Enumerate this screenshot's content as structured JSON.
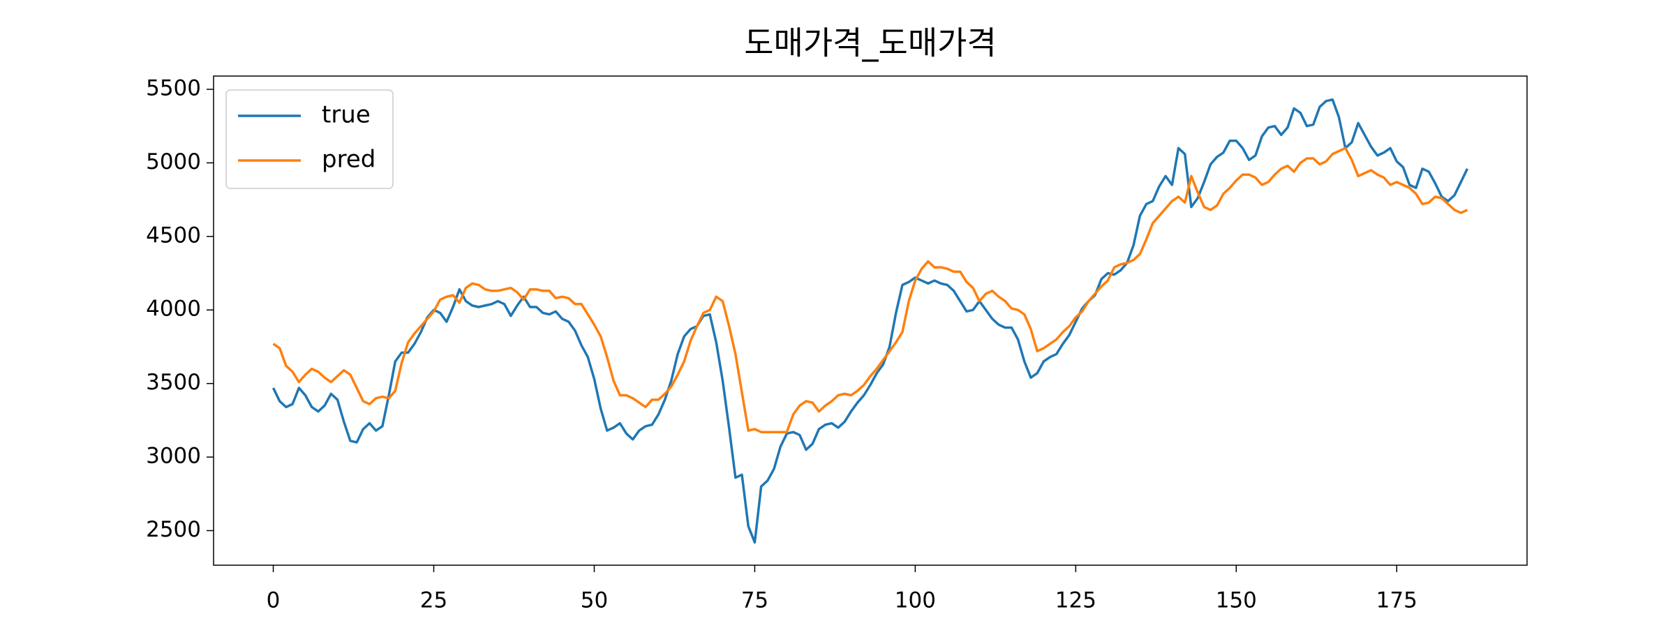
{
  "chart_data": {
    "type": "line",
    "title": "도매가격_도매가격",
    "x": [
      0,
      1,
      2,
      3,
      4,
      5,
      6,
      7,
      8,
      9,
      10,
      11,
      12,
      13,
      14,
      15,
      16,
      17,
      18,
      19,
      20,
      21,
      22,
      23,
      24,
      25,
      26,
      27,
      28,
      29,
      30,
      31,
      32,
      33,
      34,
      35,
      36,
      37,
      38,
      39,
      40,
      41,
      42,
      43,
      44,
      45,
      46,
      47,
      48,
      49,
      50,
      51,
      52,
      53,
      54,
      55,
      56,
      57,
      58,
      59,
      60,
      61,
      62,
      63,
      64,
      65,
      66,
      67,
      68,
      69,
      70,
      71,
      72,
      73,
      74,
      75,
      76,
      77,
      78,
      79,
      80,
      81,
      82,
      83,
      84,
      85,
      86,
      87,
      88,
      89,
      90,
      91,
      92,
      93,
      94,
      95,
      96,
      97,
      98,
      99,
      100,
      101,
      102,
      103,
      104,
      105,
      106,
      107,
      108,
      109,
      110,
      111,
      112,
      113,
      114,
      115,
      116,
      117,
      118,
      119,
      120,
      121,
      122,
      123,
      124,
      125,
      126,
      127,
      128,
      129,
      130,
      131,
      132,
      133,
      134,
      135,
      136,
      137,
      138,
      139,
      140,
      141,
      142,
      143,
      144,
      145,
      146,
      147,
      148,
      149,
      150,
      151,
      152,
      153,
      154,
      155,
      156,
      157,
      158,
      159,
      160,
      161,
      162,
      163,
      164,
      165,
      166,
      167,
      168,
      169,
      170,
      171,
      172,
      173,
      174,
      175,
      176,
      177,
      178,
      179,
      180,
      181,
      182,
      183,
      184,
      185,
      186
    ],
    "series": [
      {
        "name": "true",
        "color": "#1f77b4",
        "values": [
          3470,
          3380,
          3340,
          3360,
          3470,
          3420,
          3340,
          3310,
          3350,
          3430,
          3390,
          3240,
          3110,
          3100,
          3190,
          3230,
          3180,
          3210,
          3420,
          3650,
          3710,
          3710,
          3770,
          3850,
          3950,
          4000,
          3980,
          3920,
          4020,
          4140,
          4060,
          4030,
          4020,
          4030,
          4040,
          4060,
          4040,
          3960,
          4030,
          4090,
          4020,
          4020,
          3980,
          3970,
          3990,
          3940,
          3920,
          3860,
          3760,
          3680,
          3530,
          3330,
          3180,
          3200,
          3230,
          3160,
          3120,
          3180,
          3210,
          3220,
          3290,
          3390,
          3520,
          3700,
          3820,
          3870,
          3890,
          3960,
          3970,
          3780,
          3520,
          3200,
          2860,
          2880,
          2530,
          2420,
          2800,
          2840,
          2920,
          3070,
          3160,
          3170,
          3150,
          3050,
          3090,
          3190,
          3220,
          3230,
          3200,
          3240,
          3310,
          3370,
          3420,
          3490,
          3570,
          3630,
          3750,
          3980,
          4170,
          4190,
          4220,
          4200,
          4180,
          4200,
          4180,
          4170,
          4130,
          4060,
          3990,
          4000,
          4060,
          4000,
          3940,
          3900,
          3880,
          3880,
          3800,
          3650,
          3540,
          3570,
          3650,
          3680,
          3700,
          3770,
          3830,
          3920,
          4010,
          4060,
          4100,
          4210,
          4250,
          4240,
          4270,
          4320,
          4440,
          4640,
          4720,
          4740,
          4840,
          4910,
          4850,
          5100,
          5060,
          4700,
          4760,
          4870,
          4990,
          5040,
          5070,
          5150,
          5150,
          5100,
          5020,
          5050,
          5180,
          5240,
          5250,
          5190,
          5240,
          5370,
          5340,
          5250,
          5260,
          5380,
          5420,
          5430,
          5310,
          5100,
          5140,
          5270,
          5190,
          5110,
          5050,
          5070,
          5100,
          5010,
          4970,
          4850,
          4830,
          4960,
          4940,
          4860,
          4770,
          4740,
          4780,
          4870,
          4960
        ]
      },
      {
        "name": "pred",
        "color": "#ff7f0e",
        "values": [
          3770,
          3740,
          3620,
          3580,
          3510,
          3560,
          3600,
          3580,
          3540,
          3510,
          3550,
          3590,
          3560,
          3470,
          3380,
          3360,
          3400,
          3410,
          3400,
          3450,
          3640,
          3780,
          3840,
          3890,
          3940,
          3990,
          4070,
          4090,
          4100,
          4050,
          4150,
          4180,
          4170,
          4140,
          4130,
          4130,
          4140,
          4150,
          4120,
          4070,
          4140,
          4140,
          4130,
          4130,
          4080,
          4090,
          4080,
          4040,
          4040,
          3970,
          3900,
          3820,
          3680,
          3520,
          3420,
          3420,
          3400,
          3370,
          3340,
          3390,
          3390,
          3430,
          3480,
          3560,
          3650,
          3790,
          3890,
          3980,
          4000,
          4090,
          4060,
          3890,
          3700,
          3440,
          3180,
          3190,
          3170,
          3170,
          3170,
          3170,
          3170,
          3290,
          3350,
          3380,
          3370,
          3310,
          3350,
          3380,
          3420,
          3430,
          3420,
          3450,
          3490,
          3550,
          3600,
          3660,
          3720,
          3780,
          3850,
          4060,
          4200,
          4280,
          4330,
          4290,
          4290,
          4280,
          4260,
          4260,
          4190,
          4150,
          4060,
          4110,
          4130,
          4090,
          4060,
          4010,
          4000,
          3970,
          3870,
          3720,
          3740,
          3770,
          3800,
          3850,
          3890,
          3950,
          3990,
          4060,
          4110,
          4160,
          4200,
          4290,
          4310,
          4320,
          4340,
          4380,
          4480,
          4590,
          4640,
          4690,
          4740,
          4770,
          4730,
          4910,
          4800,
          4700,
          4680,
          4710,
          4790,
          4830,
          4880,
          4920,
          4920,
          4900,
          4850,
          4870,
          4920,
          4960,
          4980,
          4940,
          5000,
          5030,
          5030,
          4990,
          5010,
          5060,
          5080,
          5100,
          5020,
          4910,
          4930,
          4950,
          4920,
          4900,
          4850,
          4870,
          4850,
          4830,
          4790,
          4720,
          4730,
          4770,
          4760,
          4720,
          4680,
          4660,
          4680
        ]
      }
    ],
    "xlim": [
      -9.3,
      195.3
    ],
    "xticks": [
      0,
      25,
      50,
      75,
      100,
      125,
      150,
      175
    ],
    "ylim": [
      2265,
      5590
    ],
    "yticks": [
      2500,
      3000,
      3500,
      4000,
      4500,
      5000,
      5500
    ],
    "grid": false,
    "legend": "upper left"
  }
}
